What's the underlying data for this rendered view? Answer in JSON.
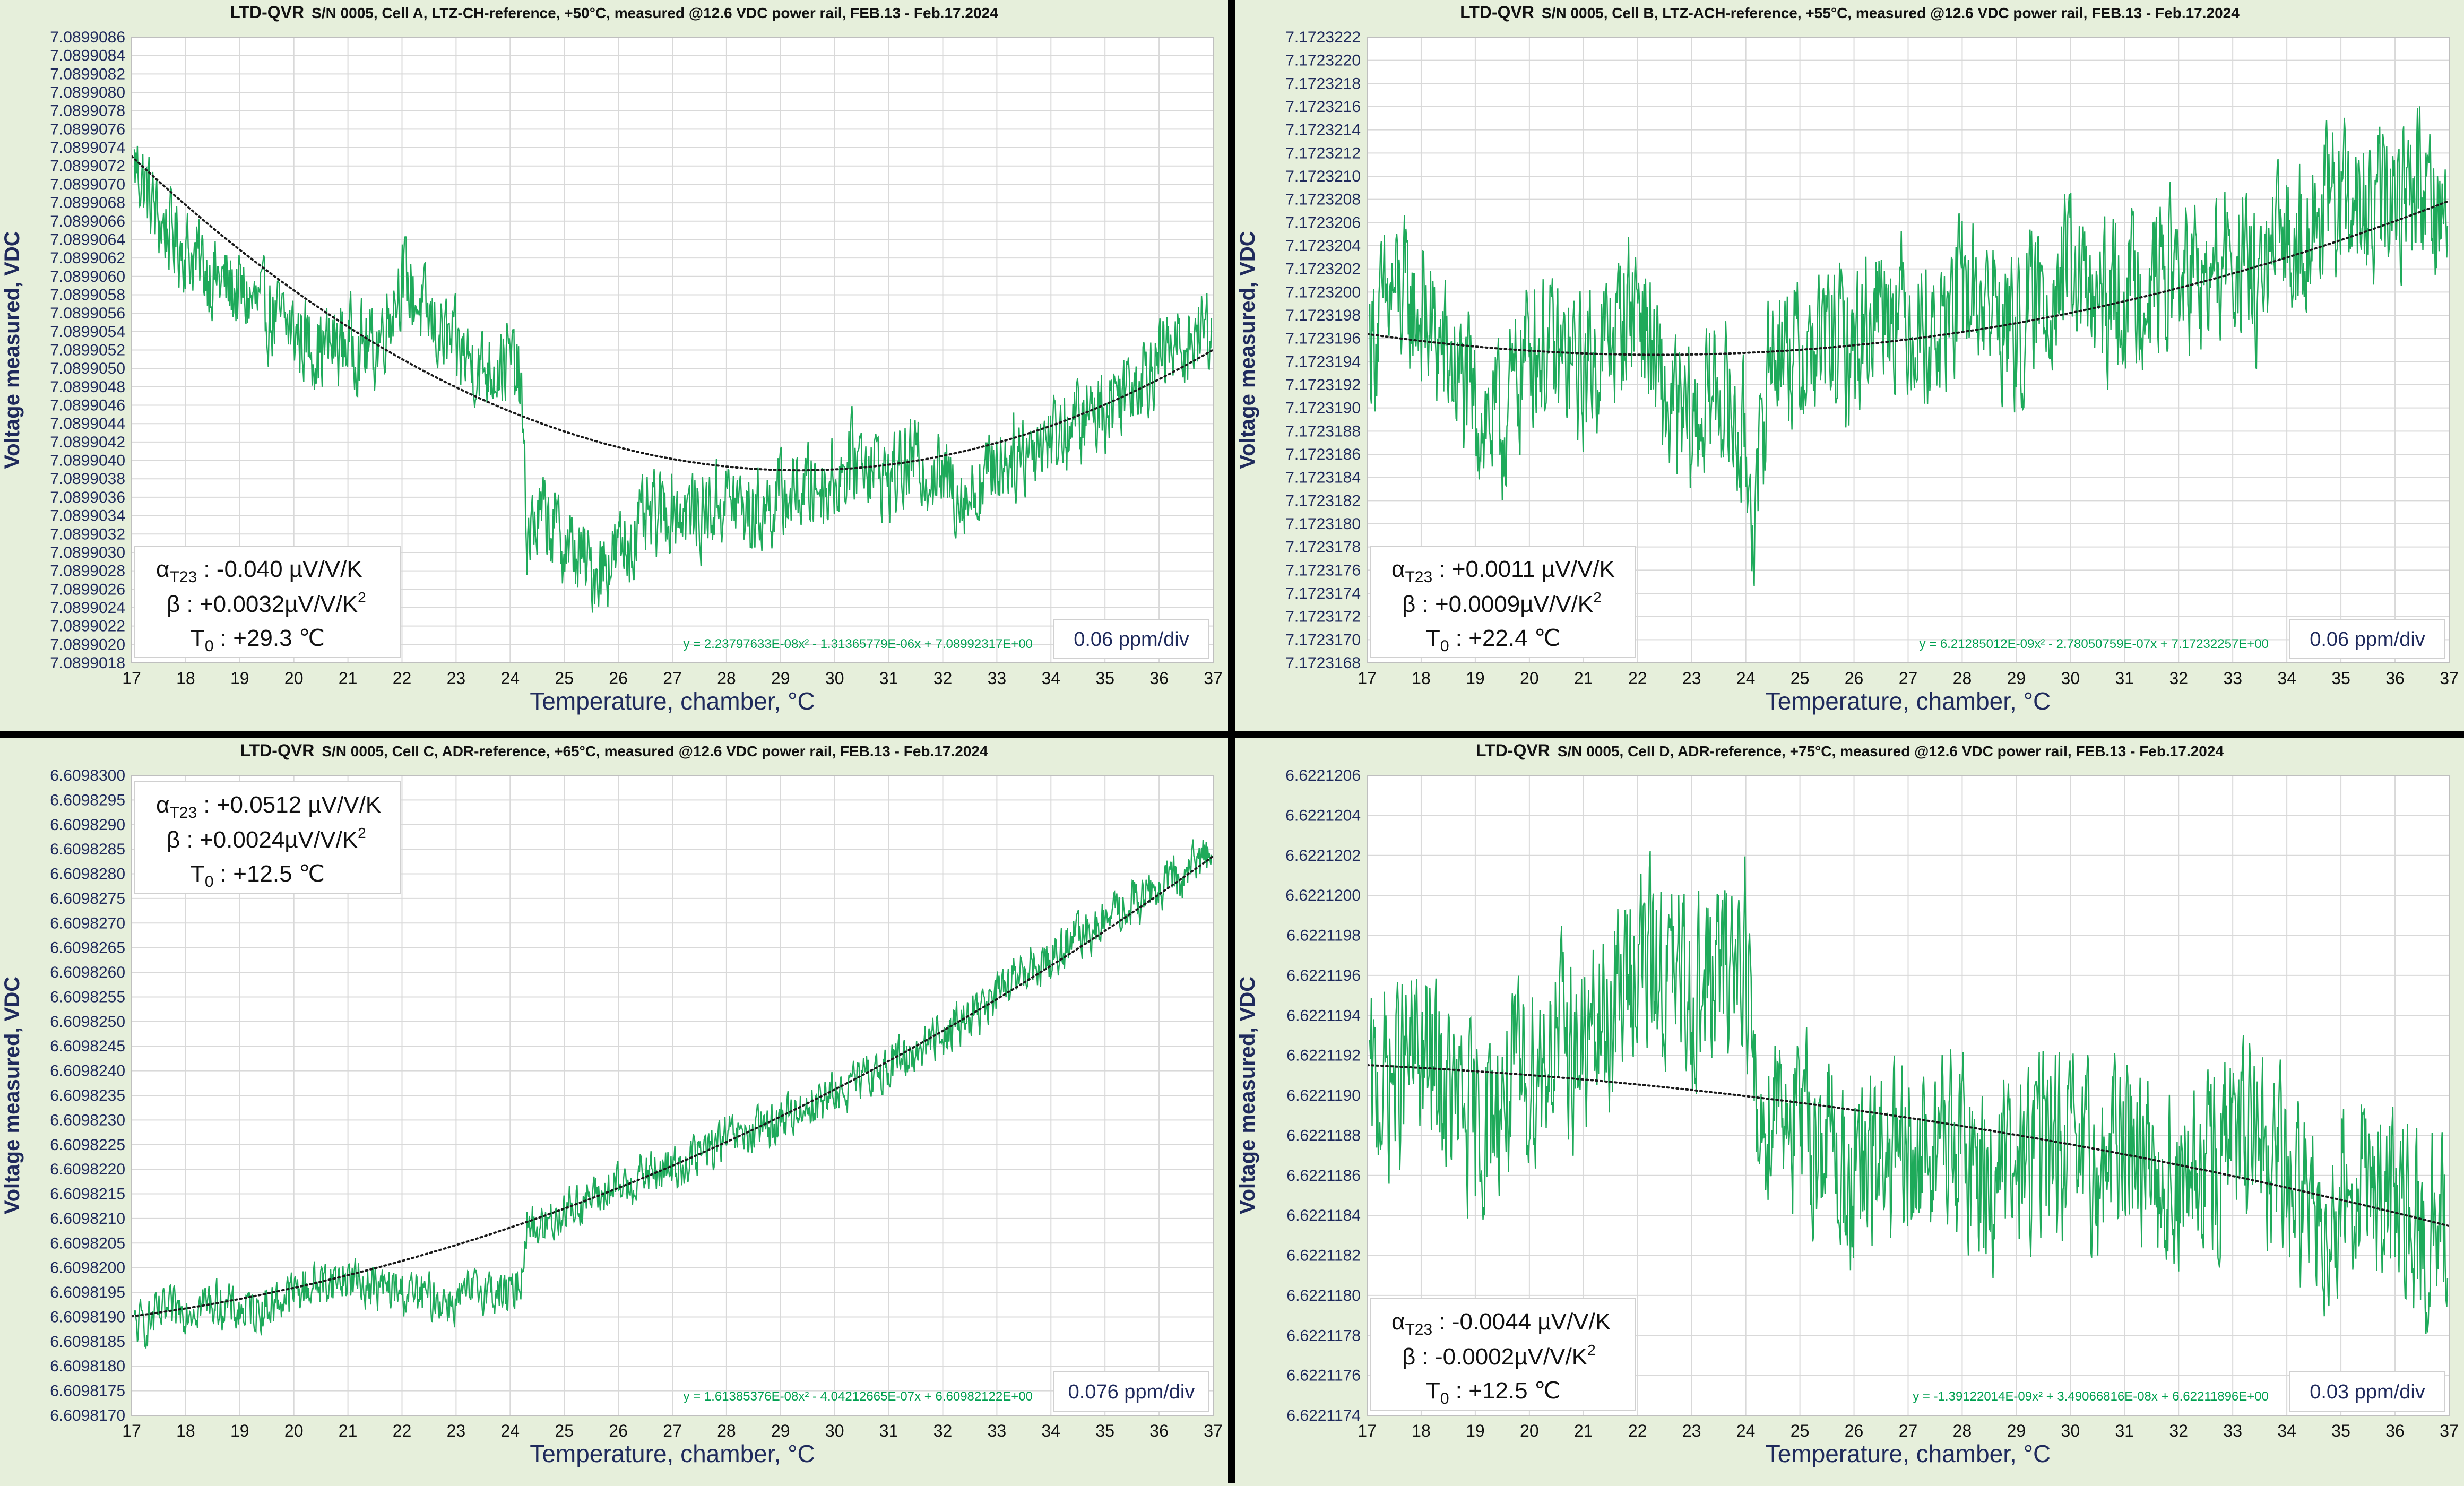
{
  "charts": [
    {
      "id": "a",
      "title_brand": "LTD-QVR",
      "title": "S/N 0005, Cell A, LTZ-CH-reference, +50°C, measured @12.6 VDC power rail, FEB.13 - Feb.17.2024",
      "alpha_label": "α",
      "alpha_sub": "T23",
      "alpha_value": " : -0.040 µV/V/K",
      "beta_text": "β : +0.0032µV/V/K",
      "beta_sup": "2",
      "t0_label": "T",
      "t0_sub": "0",
      "t0_value": " : +29.3 ℃",
      "trend_equation": "y = 2.23797633E-08x² - 1.31365779E-06x + 7.08992317E+00",
      "ppm_div": "0.06 ppm/div"
    },
    {
      "id": "b",
      "title_brand": "LTD-QVR",
      "title": "S/N 0005, Cell B, LTZ-ACH-reference, +55°C, measured @12.6 VDC power rail, FEB.13 - Feb.17.2024",
      "alpha_label": "α",
      "alpha_sub": "T23",
      "alpha_value": " : +0.0011 µV/V/K",
      "beta_text": "β : +0.0009µV/V/K",
      "beta_sup": "2",
      "t0_label": "T",
      "t0_sub": "0",
      "t0_value": " : +22.4 ℃",
      "trend_equation": "y = 6.21285012E-09x² - 2.78050759E-07x + 7.17232257E+00",
      "ppm_div": "0.06 ppm/div"
    },
    {
      "id": "c",
      "title_brand": "LTD-QVR",
      "title": "S/N 0005, Cell C, ADR-reference, +65°C, measured @12.6 VDC power rail, FEB.13 - Feb.17.2024",
      "alpha_label": "α",
      "alpha_sub": "T23",
      "alpha_value": " : +0.0512 µV/V/K",
      "beta_text": "β : +0.0024µV/V/K",
      "beta_sup": "2",
      "t0_label": "T",
      "t0_sub": "0",
      "t0_value": " : +12.5 ℃",
      "trend_equation": "y = 1.61385376E-08x² - 4.04212665E-07x + 6.60982122E+00",
      "ppm_div": "0.076 ppm/div"
    },
    {
      "id": "d",
      "title_brand": "LTD-QVR",
      "title": "S/N 0005, Cell D, ADR-reference, +75°C, measured @12.6 VDC power rail, FEB.13 - Feb.17.2024",
      "alpha_label": "α",
      "alpha_sub": "T23",
      "alpha_value": " : -0.0044 µV/V/K",
      "beta_text": "β : -0.0002µV/V/K",
      "beta_sup": "2",
      "t0_label": "T",
      "t0_sub": "0",
      "t0_value": " : +12.5 ℃",
      "trend_equation": "y = -1.39122014E-09x² + 3.49066816E-08x + 6.62211896E+00",
      "ppm_div": "0.03 ppm/div"
    }
  ],
  "colors": {
    "panel_bg": "#e6efdb",
    "plot_bg": "#ffffff",
    "gridline": "#d9d9d9",
    "series": "#1eaa5a",
    "trendline": "#1a1a1a",
    "axis_title": "#1f2a5c",
    "equation": "#00a050",
    "ppm_text": "#1f2a5c",
    "divider": "#000000"
  },
  "chart_data": [
    {
      "type": "line",
      "title": "LTD-QVR S/N 0005, Cell A, LTZ-CH-reference, +50°C, measured @12.6 VDC power rail, FEB.13 - Feb.17.2024",
      "xlabel": "Temperature, chamber, °C",
      "ylabel": "Voltage measured, VDC",
      "xlim": [
        17,
        37
      ],
      "ylim": [
        7.0899018,
        7.0899086
      ],
      "y_tick_step": 2e-07,
      "y_decimals": 7,
      "x_ticks": [
        17,
        18,
        19,
        20,
        21,
        22,
        23,
        24,
        25,
        26,
        27,
        28,
        29,
        30,
        31,
        32,
        33,
        34,
        35,
        36,
        37
      ],
      "y_ticks": [
        "7.0899018",
        "7.0899020",
        "7.0899022",
        "7.0899024",
        "7.0899026",
        "7.0899028",
        "7.0899030",
        "7.0899032",
        "7.0899034",
        "7.0899036",
        "7.0899038",
        "7.0899040",
        "7.0899042",
        "7.0899044",
        "7.0899046",
        "7.0899048",
        "7.0899050",
        "7.0899052",
        "7.0899054",
        "7.0899056",
        "7.0899058",
        "7.0899060",
        "7.0899062",
        "7.0899064",
        "7.0899066",
        "7.0899068",
        "7.0899070",
        "7.0899072",
        "7.0899074",
        "7.0899076",
        "7.0899078",
        "7.0899080",
        "7.0899082",
        "7.0899084",
        "7.0899086"
      ],
      "trendline": {
        "a": 2.23797633e-08,
        "b": -1.31365779e-06,
        "c": 7.08992317
      },
      "series": [
        {
          "x": [
            17.1,
            17.5,
            18,
            18.5,
            19,
            19.5,
            20,
            20.5,
            21,
            21.5,
            22,
            22.5,
            23,
            23.5,
            24,
            24.2,
            24.3,
            24.6,
            25,
            25.5,
            26,
            26.5,
            27,
            27.5,
            28,
            28.5,
            29,
            29.5,
            30,
            30.5,
            31,
            31.5,
            32,
            32.5,
            33,
            33.5,
            34,
            34.5,
            35,
            35.5,
            36,
            36.5,
            37
          ],
          "y": [
            7.0899072,
            7.0899066,
            7.0899063,
            7.089906,
            7.0899058,
            7.0899056,
            7.0899054,
            7.0899052,
            7.0899053,
            7.0899052,
            7.089906,
            7.0899055,
            7.0899052,
            7.089905,
            7.0899051,
            7.0899048,
            7.0899032,
            7.0899034,
            7.0899031,
            7.0899028,
            7.089903,
            7.0899033,
            7.0899035,
            7.0899034,
            7.0899036,
            7.0899034,
            7.0899036,
            7.0899037,
            7.0899038,
            7.0899041,
            7.0899038,
            7.089904,
            7.0899038,
            7.0899036,
            7.089904,
            7.0899041,
            7.0899043,
            7.0899044,
            7.0899046,
            7.0899049,
            7.0899051,
            7.0899053,
            7.0899055
          ],
          "noise": 5e-07
        }
      ]
    },
    {
      "type": "line",
      "title": "LTD-QVR S/N 0005, Cell B, LTZ-ACH-reference, +55°C, measured @12.6 VDC power rail, FEB.13 - Feb.17.2024",
      "xlabel": "Temperature, chamber, °C",
      "ylabel": "Voltage measured, VDC",
      "xlim": [
        17,
        37
      ],
      "ylim": [
        7.1723168,
        7.1723222
      ],
      "y_tick_step": 2e-07,
      "y_decimals": 7,
      "x_ticks": [
        17,
        18,
        19,
        20,
        21,
        22,
        23,
        24,
        25,
        26,
        27,
        28,
        29,
        30,
        31,
        32,
        33,
        34,
        35,
        36,
        37
      ],
      "y_ticks": [
        "7.1723168",
        "7.1723170",
        "7.1723172",
        "7.1723174",
        "7.1723176",
        "7.1723178",
        "7.1723180",
        "7.1723182",
        "7.1723184",
        "7.1723186",
        "7.1723188",
        "7.1723190",
        "7.1723192",
        "7.1723194",
        "7.1723196",
        "7.1723198",
        "7.1723200",
        "7.1723202",
        "7.1723204",
        "7.1723206",
        "7.1723208",
        "7.1723210",
        "7.1723212",
        "7.1723214",
        "7.1723216",
        "7.1723218",
        "7.1723220",
        "7.1723222"
      ],
      "trendline": {
        "a": 6.21285012e-09,
        "b": -2.78050759e-07,
        "c": 7.17232257
      },
      "series": [
        {
          "x": [
            17.1,
            17.5,
            18,
            18.5,
            19,
            19.5,
            20,
            20.5,
            21,
            21.5,
            22,
            22.5,
            23,
            23.5,
            24,
            24.2,
            24.4,
            24.6,
            25,
            25.5,
            26,
            26.5,
            27,
            27.5,
            28,
            28.5,
            29,
            29.5,
            30,
            30.5,
            31,
            31.5,
            32,
            32.5,
            33,
            33.5,
            34,
            34.5,
            35,
            35.5,
            36,
            36.5,
            37
          ],
          "y": [
            7.1723196,
            7.17232,
            7.1723198,
            7.1723194,
            7.172319,
            7.1723188,
            7.1723196,
            7.1723194,
            7.1723193,
            7.1723196,
            7.17232,
            7.172319,
            7.1723188,
            7.1723192,
            7.1723186,
            7.172318,
            7.1723194,
            7.1723196,
            7.1723194,
            7.1723196,
            7.1723195,
            7.17232,
            7.1723198,
            7.1723196,
            7.17232,
            7.1723199,
            7.1723196,
            7.17232,
            7.1723202,
            7.1723198,
            7.17232,
            7.1723201,
            7.1723202,
            7.17232,
            7.1723203,
            7.17232,
            7.1723205,
            7.1723206,
            7.1723208,
            7.1723206,
            7.1723208,
            7.172321,
            7.1723206
          ],
          "noise": 7e-07
        }
      ]
    },
    {
      "type": "line",
      "title": "LTD-QVR S/N 0005, Cell C, ADR-reference, +65°C, measured @12.6 VDC power rail, FEB.13 - Feb.17.2024",
      "xlabel": "Temperature, chamber, °C",
      "ylabel": "Voltage measured, VDC",
      "xlim": [
        17,
        37
      ],
      "ylim": [
        6.609817,
        6.60983
      ],
      "y_tick_step": 5e-07,
      "y_decimals": 7,
      "x_ticks": [
        17,
        18,
        19,
        20,
        21,
        22,
        23,
        24,
        25,
        26,
        27,
        28,
        29,
        30,
        31,
        32,
        33,
        34,
        35,
        36,
        37
      ],
      "y_ticks": [
        "6.6098170",
        "6.6098175",
        "6.6098180",
        "6.6098185",
        "6.6098190",
        "6.6098195",
        "6.6098200",
        "6.6098205",
        "6.6098210",
        "6.6098215",
        "6.6098220",
        "6.6098225",
        "6.6098230",
        "6.6098235",
        "6.6098240",
        "6.6098245",
        "6.6098250",
        "6.6098255",
        "6.6098260",
        "6.6098265",
        "6.6098270",
        "6.6098275",
        "6.6098280",
        "6.6098285",
        "6.6098290",
        "6.6098295",
        "6.6098300"
      ],
      "trendline": {
        "a": 1.61385376e-08,
        "b": -4.04212665e-07,
        "c": 6.60982122
      },
      "series": [
        {
          "x": [
            17.1,
            17.5,
            18,
            18.5,
            19,
            19.5,
            20,
            20.5,
            21,
            21.5,
            22,
            22.5,
            23,
            23.5,
            24,
            24.2,
            24.3,
            24.6,
            25,
            25.5,
            26,
            26.5,
            27,
            27.5,
            28,
            28.5,
            29,
            29.5,
            30,
            30.5,
            31,
            31.5,
            32,
            32.5,
            33,
            33.5,
            34,
            34.5,
            35,
            35.5,
            36,
            36.5,
            37
          ],
          "y": [
            6.6098188,
            6.609819,
            6.6098192,
            6.6098193,
            6.6098191,
            6.6098192,
            6.6098195,
            6.6098197,
            6.6098198,
            6.6098196,
            6.6098195,
            6.6098194,
            6.6098193,
            6.6098196,
            6.6098194,
            6.6098198,
            6.6098209,
            6.6098208,
            6.6098212,
            6.6098214,
            6.6098216,
            6.6098219,
            6.609822,
            6.6098223,
            6.6098226,
            6.6098227,
            6.609823,
            6.6098233,
            6.6098235,
            6.6098238,
            6.6098241,
            6.6098244,
            6.6098248,
            6.6098251,
            6.6098255,
            6.609826,
            6.6098263,
            6.6098267,
            6.609827,
            6.6098274,
            6.6098277,
            6.609828,
            6.6098286
          ],
          "noise": 5e-07
        }
      ]
    },
    {
      "type": "line",
      "title": "LTD-QVR S/N 0005, Cell D, ADR-reference, +75°C, measured @12.6 VDC power rail, FEB.13 - Feb.17.2024",
      "xlabel": "Temperature, chamber, °C",
      "ylabel": "Voltage measured, VDC",
      "xlim": [
        17,
        37
      ],
      "ylim": [
        6.6221174,
        6.6221206
      ],
      "y_tick_step": 2e-07,
      "y_decimals": 7,
      "x_ticks": [
        17,
        18,
        19,
        20,
        21,
        22,
        23,
        24,
        25,
        26,
        27,
        28,
        29,
        30,
        31,
        32,
        33,
        34,
        35,
        36,
        37
      ],
      "y_ticks": [
        "6.6221174",
        "6.6221176",
        "6.6221178",
        "6.6221180",
        "6.6221182",
        "6.6221184",
        "6.6221186",
        "6.6221188",
        "6.6221190",
        "6.6221192",
        "6.6221194",
        "6.6221196",
        "6.6221198",
        "6.6221200",
        "6.6221202",
        "6.6221204",
        "6.6221206"
      ],
      "trendline": {
        "a": -1.39122014e-09,
        "b": 3.49066816e-08,
        "c": 6.62211896
      },
      "series": [
        {
          "x": [
            17.1,
            17.5,
            18,
            18.5,
            19,
            19.5,
            20,
            20.5,
            21,
            21.5,
            22,
            22.5,
            23,
            23.5,
            24,
            24.2,
            24.4,
            24.6,
            25,
            25.5,
            26,
            26.5,
            27,
            27.5,
            28,
            28.5,
            29,
            29.5,
            30,
            30.5,
            31,
            31.5,
            32,
            32.5,
            33,
            33.5,
            34,
            34.5,
            35,
            35.5,
            36,
            36.5,
            37
          ],
          "y": [
            6.622119,
            6.6221191,
            6.6221192,
            6.622119,
            6.6221188,
            6.622119,
            6.6221191,
            6.6221193,
            6.6221192,
            6.6221194,
            6.6221197,
            6.6221196,
            6.6221195,
            6.6221196,
            6.6221198,
            6.6221188,
            6.6221189,
            6.6221191,
            6.6221188,
            6.6221188,
            6.6221185,
            6.6221187,
            6.6221186,
            6.6221188,
            6.6221187,
            6.6221186,
            6.6221186,
            6.6221188,
            6.6221187,
            6.6221186,
            6.6221188,
            6.6221187,
            6.6221185,
            6.6221186,
            6.6221188,
            6.6221187,
            6.6221186,
            6.6221184,
            6.6221185,
            6.6221186,
            6.6221184,
            6.6221183,
            6.6221184
          ],
          "noise": 5e-07
        }
      ]
    }
  ]
}
